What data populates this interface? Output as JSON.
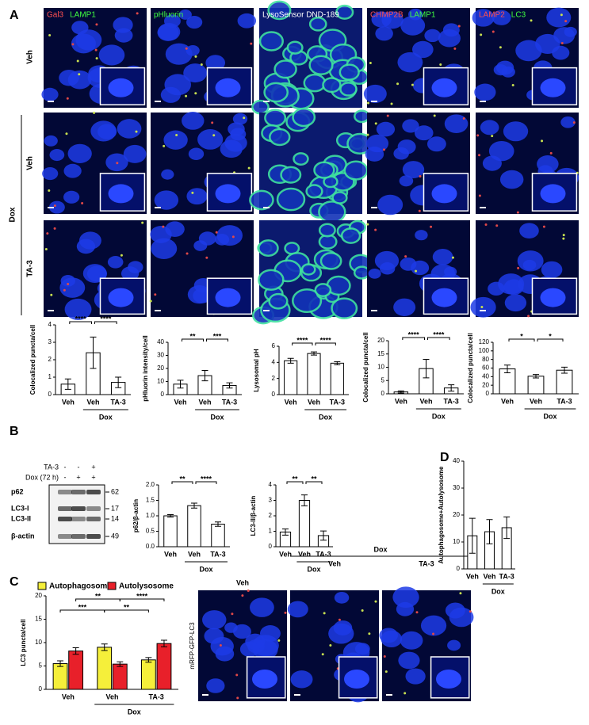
{
  "panel_labels": [
    "A",
    "B",
    "C",
    "D"
  ],
  "panel_a": {
    "stains": [
      [
        {
          "text": "Gal3",
          "color": "#ff5050"
        },
        {
          "text": "LAMP1",
          "color": "#40ff40"
        }
      ],
      [
        {
          "text": "pHluorin",
          "color": "#40ff40"
        }
      ],
      [
        {
          "text": "LysoSensor DND-189",
          "color": "#ffffff"
        }
      ],
      [
        {
          "text": "CHMP2B",
          "color": "#ff5050"
        },
        {
          "text": "LAMP1",
          "color": "#40ff40"
        }
      ],
      [
        {
          "text": "LAMP2",
          "color": "#ff5050"
        },
        {
          "text": "LC3",
          "color": "#40ff40"
        }
      ]
    ],
    "row_labels": [
      "Veh",
      "Veh",
      "TA-3"
    ],
    "group_label": "Dox"
  },
  "panel_b_blot": {
    "row_headers": [
      "TA-3",
      "Dox (72 h)"
    ],
    "signs": [
      [
        "-",
        "-",
        "+"
      ],
      [
        "-",
        "+",
        "+"
      ]
    ],
    "bands": [
      "p62",
      "LC3-I",
      "LC3-II",
      "β-actin"
    ],
    "weights": [
      62,
      17,
      14,
      49
    ]
  },
  "panel_c_images": {
    "group_label": "Dox",
    "columns": [
      "Veh",
      "Veh",
      "TA-3"
    ],
    "stain": "mRFP-GFP-LC3"
  },
  "chart_data": [
    {
      "type": "bar",
      "ylabel": "Colocalized puncta/cell",
      "categories": [
        "Veh",
        "Veh",
        "TA-3"
      ],
      "group_label": "Dox",
      "values": [
        0.6,
        2.4,
        0.7
      ],
      "errors": [
        0.3,
        0.9,
        0.3
      ],
      "ylim": [
        0,
        4
      ],
      "yticks": [
        0,
        1,
        2,
        3,
        4
      ],
      "significance": [
        "****",
        "****"
      ]
    },
    {
      "type": "bar",
      "ylabel": "pHluorin intensity/cell",
      "categories": [
        "Veh",
        "Veh",
        "TA-3"
      ],
      "group_label": "Dox",
      "values": [
        8,
        14.5,
        7
      ],
      "errors": [
        3,
        4,
        2
      ],
      "ylim": [
        0,
        40
      ],
      "yticks": [
        0,
        10,
        20,
        30,
        40
      ],
      "significance": [
        "**",
        "***"
      ]
    },
    {
      "type": "bar",
      "ylabel": "Lysosomal pH",
      "categories": [
        "Veh",
        "Veh",
        "TA-3"
      ],
      "group_label": "Dox",
      "values": [
        4.2,
        5.1,
        3.9
      ],
      "errors": [
        0.3,
        0.2,
        0.2
      ],
      "ylim": [
        0,
        6
      ],
      "yticks": [
        0,
        2,
        4,
        6
      ],
      "significance": [
        "****",
        "****"
      ]
    },
    {
      "type": "bar",
      "ylabel": "Colocalized puncta/cell",
      "categories": [
        "Veh",
        "Veh",
        "TA-3"
      ],
      "group_label": "Dox",
      "values": [
        0.7,
        9.5,
        2.2
      ],
      "errors": [
        0.4,
        3.5,
        1.2
      ],
      "ylim": [
        0,
        20
      ],
      "yticks": [
        0,
        5,
        10,
        15,
        20
      ],
      "significance": [
        "****",
        "****"
      ]
    },
    {
      "type": "bar",
      "ylabel": "Colocalized puncta/cell",
      "categories": [
        "Veh",
        "Veh",
        "TA-3"
      ],
      "group_label": "Dox",
      "values": [
        58,
        41,
        55
      ],
      "errors": [
        9,
        4,
        7
      ],
      "ylim": [
        0,
        120
      ],
      "yticks": [
        0,
        20,
        40,
        60,
        80,
        100,
        120
      ],
      "significance": [
        "*",
        "*"
      ]
    },
    {
      "type": "bar",
      "ylabel": "p62/β-actin",
      "categories": [
        "Veh",
        "Veh",
        "TA-3"
      ],
      "group_label": "Dox",
      "values": [
        1.0,
        1.33,
        0.73
      ],
      "errors": [
        0.04,
        0.08,
        0.07
      ],
      "ylim": [
        0,
        2
      ],
      "yticks": [
        {
          "value": 0,
          "label": "0.0"
        },
        {
          "value": 0.5,
          "label": "0.5"
        },
        {
          "value": 1,
          "label": "1.0"
        },
        {
          "value": 1.5,
          "label": "1.5"
        },
        {
          "value": 2,
          "label": "2.0"
        }
      ],
      "significance": [
        "**",
        "****"
      ]
    },
    {
      "type": "bar",
      "ylabel": "LC3-II/β-actin",
      "categories": [
        "Veh",
        "Veh",
        "TA-3"
      ],
      "group_label": "Dox",
      "values": [
        0.95,
        3.0,
        0.72
      ],
      "errors": [
        0.2,
        0.35,
        0.3
      ],
      "ylim": [
        0,
        4
      ],
      "yticks": [
        0,
        1,
        2,
        3,
        4
      ],
      "significance": [
        "**",
        "**"
      ]
    },
    {
      "type": "bar",
      "ylabel": "Autophagosome+Autolysosome",
      "categories": [
        "Veh",
        "Veh",
        "TA-3"
      ],
      "group_label": "Dox",
      "values": [
        12.3,
        13.8,
        15.3
      ],
      "errors": [
        6.5,
        4.5,
        4.0
      ],
      "ylim": [
        0,
        40
      ],
      "yticks": [
        0,
        10,
        20,
        30,
        40
      ],
      "significance": []
    },
    {
      "type": "grouped_bar",
      "ylabel": "LC3 puncta/cell",
      "categories": [
        "Veh",
        "Veh",
        "TA-3"
      ],
      "group_label": "Dox",
      "series": [
        {
          "name": "Autophagosome",
          "color": "#f5ef3a",
          "values": [
            5.5,
            9.0,
            6.3
          ],
          "errors": [
            0.6,
            0.7,
            0.5
          ]
        },
        {
          "name": "Autolysosome",
          "color": "#e8202a",
          "values": [
            8.2,
            5.4,
            9.8
          ],
          "errors": [
            0.7,
            0.5,
            0.7
          ]
        }
      ],
      "ylim": [
        0,
        20
      ],
      "yticks": [
        0,
        5,
        10,
        15,
        20
      ],
      "significance": [
        "**",
        "****",
        "***",
        "**"
      ]
    }
  ]
}
